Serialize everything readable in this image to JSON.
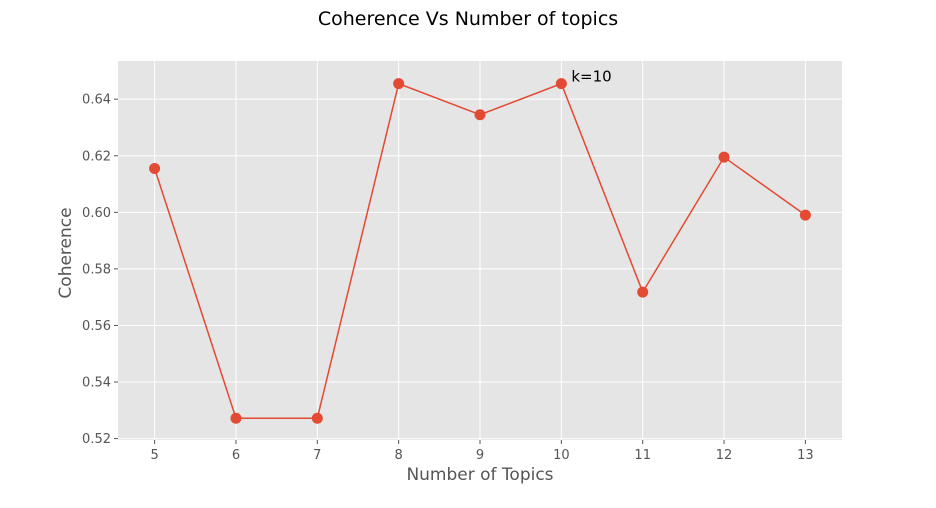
{
  "chart_data": {
    "type": "line",
    "title": "Coherence Vs Number of topics",
    "xlabel": "Number of Topics",
    "ylabel": "Coherence",
    "x": [
      5,
      6,
      7,
      8,
      9,
      10,
      11,
      12,
      13
    ],
    "y": [
      0.6155,
      0.5272,
      0.5272,
      0.6455,
      0.6345,
      0.6455,
      0.5718,
      0.6195,
      0.599
    ],
    "xlim": [
      4.55,
      13.45
    ],
    "ylim": [
      0.5195,
      0.6535
    ],
    "xticks": [
      "5",
      "6",
      "7",
      "8",
      "9",
      "10",
      "11",
      "12",
      "13"
    ],
    "yticks": [
      "0.52",
      "0.54",
      "0.56",
      "0.58",
      "0.60",
      "0.62",
      "0.64"
    ],
    "annotation": {
      "text": "k=10",
      "x": 10,
      "y": 0.6455
    },
    "grid": true,
    "style": "ggplot",
    "colors": {
      "line": "#E24A33",
      "marker": "#E24A33",
      "plot_background": "#E5E5E5",
      "grid": "#FFFFFF"
    }
  }
}
